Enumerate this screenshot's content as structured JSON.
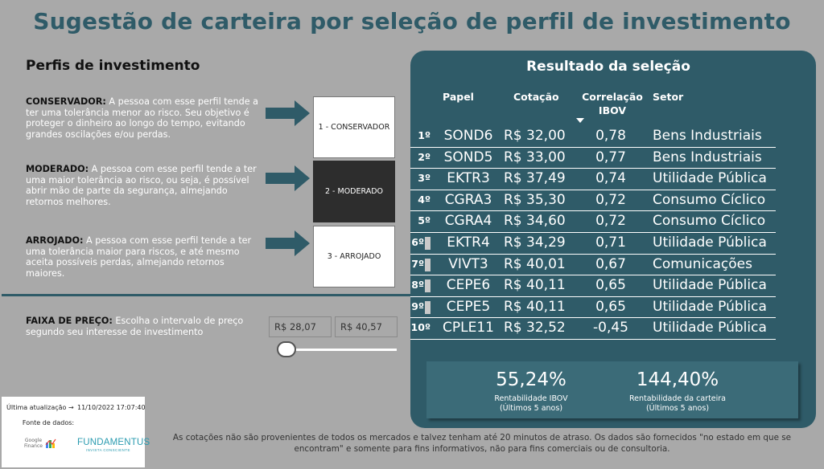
{
  "page": {
    "title": "Sugestão de carteira por seleção de perfil de investimento"
  },
  "profiles": {
    "heading": "Perfis de investimento",
    "items": [
      {
        "name": "CONSERVADOR:",
        "text": " A pessoa com esse perfil tende a ter uma tolerância menor ao risco. Seu objetivo é proteger o dinheiro ao longo do tempo, evitando grandes oscilações e/ou perdas.",
        "button": "1 - CONSERVADOR"
      },
      {
        "name": "MODERADO:",
        "text": " A pessoa com esse perfil tende a ter uma maior tolerância ao risco, ou seja, é possível abrir mão de parte da segurança, almejando retornos melhores.",
        "button": "2 - MODERADO"
      },
      {
        "name": "ARROJADO:",
        "text": " A pessoa com esse perfil tende a ter uma tolerância maior para riscos, e até mesmo aceita possíveis perdas, almejando retornos maiores.",
        "button": "3 - ARROJADO"
      }
    ],
    "selected_index": 1
  },
  "price_filter": {
    "label": "FAIXA DE PREÇO:",
    "text": " Escolha o intervalo de preço segundo seu interesse de investimento",
    "min": "R$ 28,07",
    "max": "R$ 40,57"
  },
  "result": {
    "title": "Resultado da seleção",
    "headers": {
      "papel": "Papel",
      "cotacao": "Cotação",
      "correlacao": "Correlação IBOV",
      "setor": "Setor"
    },
    "rows": [
      {
        "rank": "1º",
        "papel": "SOND6",
        "cotacao": "R$ 32,00",
        "correlacao": "0,78",
        "setor": "Bens Industriais"
      },
      {
        "rank": "2º",
        "papel": "SOND5",
        "cotacao": "R$ 33,00",
        "correlacao": "0,77",
        "setor": "Bens Industriais"
      },
      {
        "rank": "3º",
        "papel": "EKTR3",
        "cotacao": "R$ 37,49",
        "correlacao": "0,74",
        "setor": "Utilidade Pública"
      },
      {
        "rank": "4º",
        "papel": "CGRA3",
        "cotacao": "R$ 35,30",
        "correlacao": "0,72",
        "setor": "Consumo Cíclico"
      },
      {
        "rank": "5º",
        "papel": "CGRA4",
        "cotacao": "R$ 34,60",
        "correlacao": "0,72",
        "setor": "Consumo Cíclico"
      },
      {
        "rank": "6º",
        "papel": "EKTR4",
        "cotacao": "R$ 34,29",
        "correlacao": "0,71",
        "setor": "Utilidade Pública"
      },
      {
        "rank": "7º",
        "papel": "VIVT3",
        "cotacao": "R$ 40,01",
        "correlacao": "0,67",
        "setor": "Comunicações"
      },
      {
        "rank": "8º",
        "papel": "CEPE6",
        "cotacao": "R$ 40,11",
        "correlacao": "0,65",
        "setor": "Utilidade Pública"
      },
      {
        "rank": "9º",
        "papel": "CEPE5",
        "cotacao": "R$ 40,11",
        "correlacao": "0,65",
        "setor": "Utilidade Pública"
      },
      {
        "rank": "10º",
        "papel": "CPLE11",
        "cotacao": "R$ 32,52",
        "correlacao": "-0,45",
        "setor": "Utilidade Pública"
      }
    ],
    "kpis": [
      {
        "value": "55,24%",
        "label_1": "Rentabilidade IBOV",
        "label_2": "(Últimos 5 anos)"
      },
      {
        "value": "144,40%",
        "label_1": "Rentabilidade da carteira",
        "label_2": "(Últimos 5 anos)"
      }
    ]
  },
  "footer": {
    "update_label": "Última atualização →",
    "update_value": "11/10/2022 17:07:40",
    "source_label": "Fonte de dados:",
    "google_logo_line1": "Google",
    "google_logo_line2": "Finance",
    "fund_logo": "FUNDAMENTUS",
    "fund_logo_sub": "INVISTA CONSCIENTE",
    "disclaimer": "As cotações não são provenientes de todos os mercados e talvez tenham até 20 minutos de atraso. Os dados são fornecidos \"no estado em que se encontram\" e somente para fins informativos, não para fins comerciais ou de consultoria."
  },
  "colors": {
    "brand": "#2f5b68",
    "background": "#a9a9a9",
    "selected_button": "#2d2d2d",
    "kpi_box": "#3b6b78",
    "fundamentus": "#2a9bb0"
  }
}
